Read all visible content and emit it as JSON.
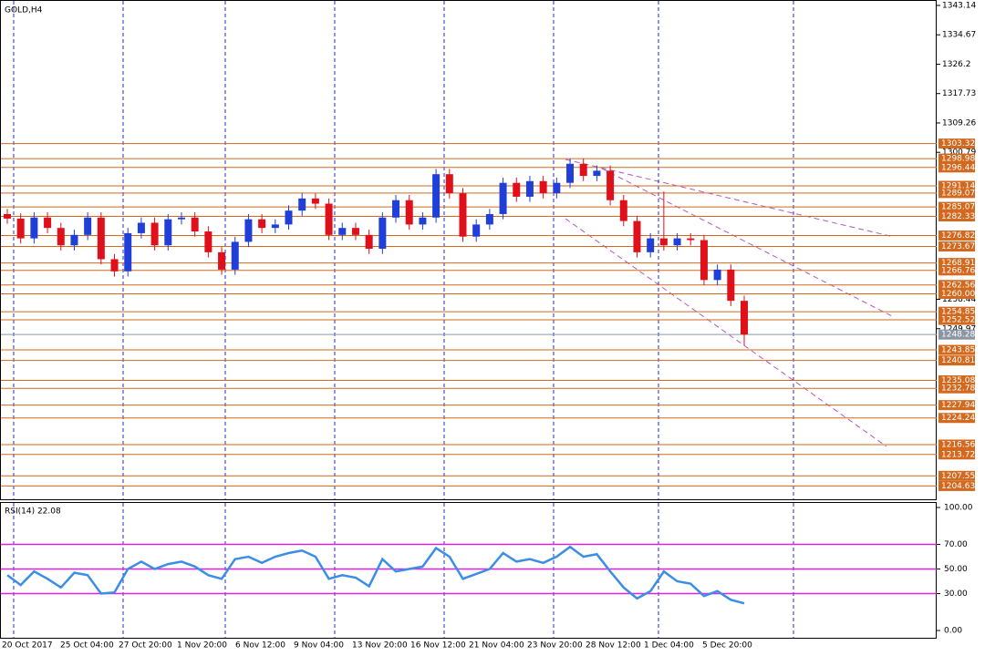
{
  "chart_data": [
    {
      "type": "candlestick",
      "title": "GOLD,H4",
      "x_labels": [
        "20 Oct 2017",
        "25 Oct 04:00",
        "27 Oct 20:00",
        "1 Nov 20:00",
        "6 Nov 12:00",
        "9 Nov 04:00",
        "13 Nov 20:00",
        "16 Nov 12:00",
        "21 Nov 04:00",
        "23 Nov 20:00",
        "28 Nov 12:00",
        "1 Dec 04:00",
        "5 Dec 20:00"
      ],
      "open": [
        1283,
        1281.7,
        1276,
        1282,
        1279,
        1274,
        1277,
        1282,
        1270,
        1266.5,
        1277.5,
        1280.5,
        1274,
        1281.5,
        1282,
        1278,
        1272,
        1267,
        1275,
        1281.5,
        1279,
        1280,
        1284,
        1287.5,
        1286,
        1277,
        1279,
        1277,
        1273,
        1282,
        1287,
        1280,
        1282,
        1294.5,
        1289,
        1276.5,
        1280,
        1283,
        1292,
        1288,
        1292.5,
        1289,
        1292,
        1297.5,
        1294,
        1295.5,
        1287,
        1281,
        1272,
        1276,
        1274,
        1276,
        1275.5,
        1264,
        1267,
        1258
      ],
      "high": [
        1284.5,
        1283.2,
        1283.5,
        1283.5,
        1280.5,
        1278.5,
        1283.5,
        1283.5,
        1271.5,
        1279,
        1282,
        1282,
        1283,
        1283.5,
        1283.5,
        1279.5,
        1273.5,
        1276.5,
        1283,
        1283,
        1281.5,
        1285.5,
        1289,
        1289,
        1287.5,
        1280.5,
        1280.5,
        1278.5,
        1283.5,
        1288.5,
        1288.5,
        1283.5,
        1296,
        1296,
        1290.5,
        1281.5,
        1284.5,
        1293.5,
        1293.5,
        1294,
        1294,
        1293.5,
        1299,
        1299,
        1297,
        1297,
        1288.5,
        1282.5,
        1277.5,
        1289.5,
        1277.5,
        1277.5,
        1277,
        1268.5,
        1268.5,
        1259.5
      ],
      "low": [
        1280.2,
        1274.5,
        1274.5,
        1277.5,
        1272.5,
        1272.5,
        1275.5,
        1268.5,
        1265,
        1265,
        1276,
        1272.5,
        1272.5,
        1280,
        1276.5,
        1270.5,
        1265.5,
        1265.5,
        1273.5,
        1277.5,
        1277.5,
        1278.5,
        1282.5,
        1284.5,
        1275.5,
        1275.5,
        1275.5,
        1271.5,
        1271.5,
        1280.5,
        1278.5,
        1278.5,
        1280.5,
        1287.5,
        1275,
        1275,
        1278.5,
        1281.5,
        1286.5,
        1286.5,
        1287.5,
        1287.5,
        1290.5,
        1292.5,
        1292.5,
        1285.5,
        1279.5,
        1270.5,
        1270.5,
        1272.5,
        1272.5,
        1274,
        1262.5,
        1262.5,
        1256.5,
        1245
      ],
      "close": [
        1281.7,
        1276,
        1282,
        1279,
        1274,
        1277,
        1282,
        1270,
        1266.5,
        1277.5,
        1280.5,
        1274,
        1281.5,
        1282,
        1278,
        1272,
        1267,
        1275,
        1281.5,
        1279,
        1280,
        1284,
        1287.5,
        1286,
        1277,
        1279,
        1277,
        1273,
        1282,
        1287,
        1280,
        1282,
        1294.5,
        1289,
        1276.5,
        1280,
        1283,
        1292,
        1288,
        1292.5,
        1289,
        1292,
        1297.5,
        1294,
        1295.5,
        1287,
        1281,
        1272,
        1276,
        1274,
        1276,
        1275.5,
        1264,
        1267,
        1258,
        1248.3
      ],
      "up_color": "#1f3fd8",
      "down_color": "#e0101a",
      "ylim": [
        1200.8,
        1344.7
      ],
      "yticks": [
        1343.14,
        1334.67,
        1326.2,
        1317.73,
        1309.26,
        1300.79,
        1258.44,
        1249.97
      ],
      "levels": [
        1303.32,
        1298.98,
        1296.44,
        1291.14,
        1289.07,
        1285.07,
        1282.33,
        1276.82,
        1273.67,
        1268.91,
        1266.76,
        1262.56,
        {
          "value": 1260,
          "label": "1260.00"
        },
        1254.85,
        1252.52,
        1243.85,
        1240.81,
        1235.08,
        1232.78,
        1227.94,
        1224.24,
        1216.56,
        1213.72,
        1207.55,
        1204.63
      ],
      "level_color": "#d2691e",
      "current_price": 1248.28,
      "current_color": "#8a96a3"
    },
    {
      "type": "line",
      "title": "RSI(14) 22.08",
      "values": [
        45,
        37,
        48,
        42,
        35,
        47,
        45,
        30,
        31,
        50,
        56,
        50,
        54,
        56,
        52,
        45,
        42,
        58,
        60,
        55,
        60,
        63,
        65,
        60,
        42,
        45,
        43,
        36,
        58,
        48,
        50,
        52,
        67,
        60,
        42,
        46,
        50,
        63,
        56,
        58,
        55,
        60,
        68,
        60,
        62,
        48,
        35,
        26,
        32,
        48,
        40,
        38,
        28,
        32,
        25,
        22.08
      ],
      "color": "#3a8ee6",
      "ylim": [
        -5.9,
        103.7
      ],
      "yticks": [
        {
          "value": 100,
          "label": "100.00"
        },
        {
          "value": 70,
          "label": "70.00"
        },
        {
          "value": 50,
          "label": "50.00"
        },
        {
          "value": 30,
          "label": "30.00"
        },
        {
          "value": 0,
          "label": "0.00"
        }
      ],
      "levels": [
        70,
        50,
        30
      ],
      "level_color": "#e020e0"
    }
  ]
}
